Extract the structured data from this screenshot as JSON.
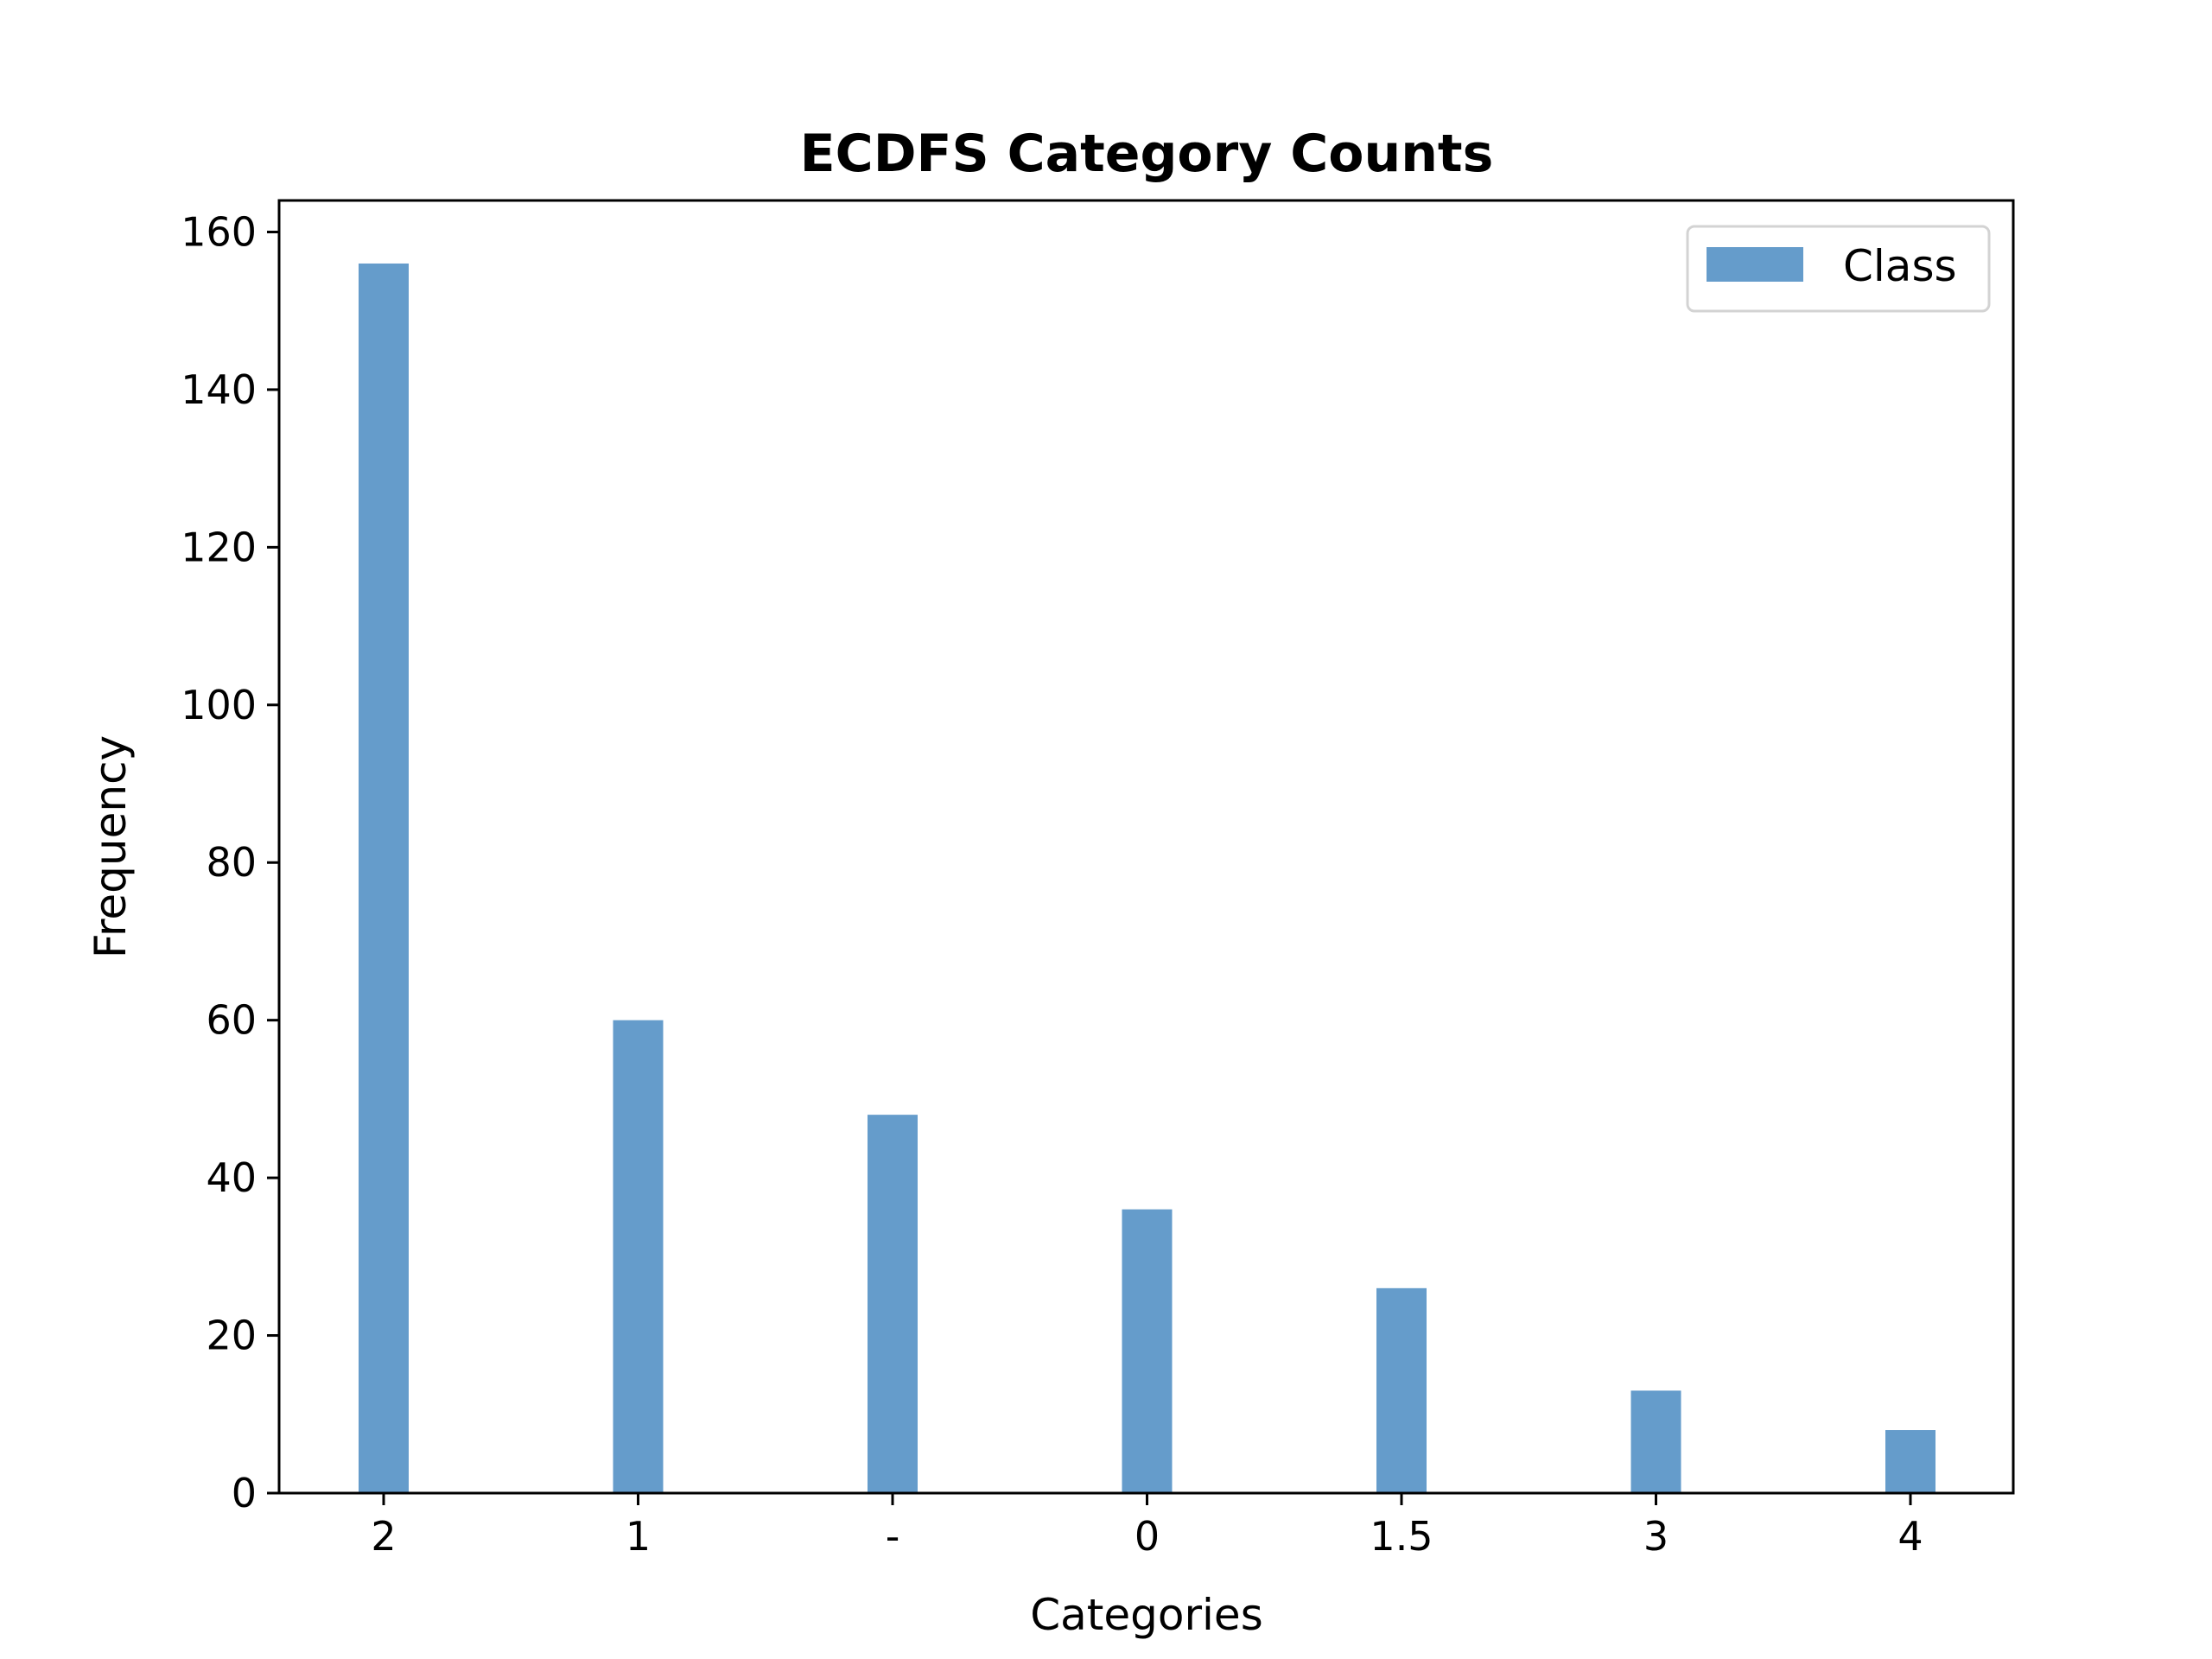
{
  "chart_data": {
    "type": "bar",
    "title": "ECDFS Category Counts",
    "xlabel": "Categories",
    "ylabel": "Frequency",
    "categories": [
      "2",
      "1",
      "-",
      "0",
      "1.5",
      "3",
      "4"
    ],
    "series": [
      {
        "name": "Class",
        "values": [
          156,
          60,
          48,
          36,
          26,
          13,
          8
        ],
        "color": "#4a8bc2"
      }
    ],
    "ylim": [
      0,
      164
    ],
    "yticks": [
      0,
      20,
      40,
      60,
      80,
      100,
      120,
      140,
      160
    ],
    "grid": false,
    "legend": "top-right"
  }
}
